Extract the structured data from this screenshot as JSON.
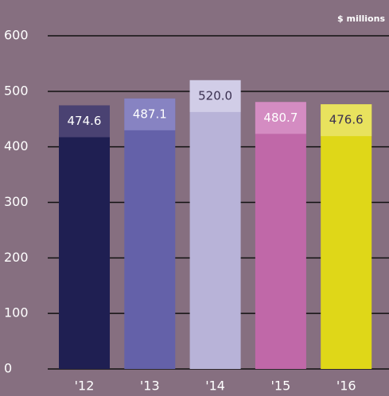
{
  "chart_data": {
    "type": "bar",
    "unit_label": "$ millions",
    "categories": [
      "'12",
      "'13",
      "'14",
      "'15",
      "'16"
    ],
    "values": [
      474.6,
      487.1,
      520.0,
      480.7,
      476.6
    ],
    "value_labels": [
      "474.6",
      "487.1",
      "520.0",
      "480.7",
      "476.6"
    ],
    "colors": [
      "#1f1f52",
      "#6461a9",
      "#b8b3d8",
      "#c068a8",
      "#dfd718"
    ],
    "highlight_colors": [
      "#4a4272",
      "#8783c2",
      "#d1cde7",
      "#d48cc2",
      "#e8e25e"
    ],
    "label_colors": [
      "#ffffff",
      "#ffffff",
      "#3a3050",
      "#ffffff",
      "#3a3050"
    ],
    "ylim": [
      0,
      600
    ],
    "yticks": [
      0,
      100,
      200,
      300,
      400,
      500,
      600
    ],
    "grid": true
  }
}
